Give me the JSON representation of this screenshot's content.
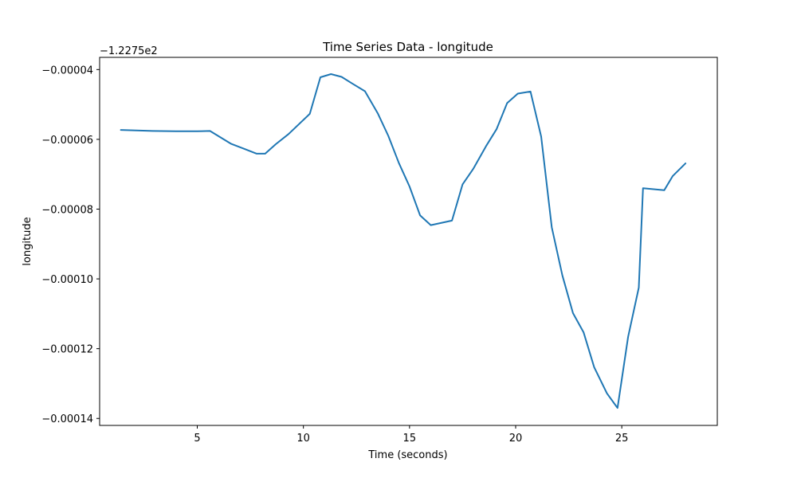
{
  "chart_data": {
    "type": "line",
    "title": "Time Series Data - longitude",
    "xlabel": "Time (seconds)",
    "ylabel": "longitude",
    "offset_label": "−1.2275e2",
    "xlim": [
      0.4,
      29.5
    ],
    "ylim": [
      -0.000142,
      -3.65e-05
    ],
    "x_ticks": [
      5,
      10,
      15,
      20,
      25
    ],
    "x_tick_labels": [
      "5",
      "10",
      "15",
      "20",
      "25"
    ],
    "y_ticks": [
      -4e-05,
      -6e-05,
      -8e-05,
      -0.0001,
      -0.00012,
      -0.00014
    ],
    "y_tick_labels": [
      "−0.00004",
      "−0.00006",
      "−0.00008",
      "−0.00010",
      "−0.00012",
      "−0.00014"
    ],
    "grid": false,
    "series": [
      {
        "color": "#1f77b4",
        "x": [
          1.4,
          2.9,
          4.0,
          5.0,
          5.6,
          6.6,
          7.2,
          7.8,
          8.2,
          8.7,
          9.3,
          10.3,
          10.8,
          11.3,
          11.8,
          12.3,
          12.9,
          13.5,
          14.0,
          14.5,
          15.0,
          15.5,
          16.0,
          17.0,
          17.5,
          18.0,
          18.6,
          19.1,
          19.6,
          20.1,
          20.7,
          21.2,
          21.7,
          22.2,
          22.7,
          23.2,
          23.7,
          24.3,
          24.8,
          25.3,
          25.8,
          26.0,
          27.0,
          27.4,
          28.0
        ],
        "y": [
          -5.73e-05,
          -5.76e-05,
          -5.77e-05,
          -5.77e-05,
          -5.76e-05,
          -6.13e-05,
          -6.27e-05,
          -6.41e-05,
          -6.41e-05,
          -6.14e-05,
          -5.85e-05,
          -5.27e-05,
          -4.22e-05,
          -4.13e-05,
          -4.21e-05,
          -4.4e-05,
          -4.62e-05,
          -5.25e-05,
          -5.9e-05,
          -6.68e-05,
          -7.35e-05,
          -8.18e-05,
          -8.46e-05,
          -8.33e-05,
          -7.29e-05,
          -6.85e-05,
          -6.2e-05,
          -5.71e-05,
          -4.96e-05,
          -4.69e-05,
          -4.63e-05,
          -5.92e-05,
          -8.52e-05,
          -9.9e-05,
          -0.0001098,
          -0.0001153,
          -0.0001253,
          -0.0001328,
          -0.000137,
          -0.0001166,
          -0.0001025,
          -7.4e-05,
          -7.46e-05,
          -7.05e-05,
          -6.69e-05
        ]
      }
    ]
  }
}
